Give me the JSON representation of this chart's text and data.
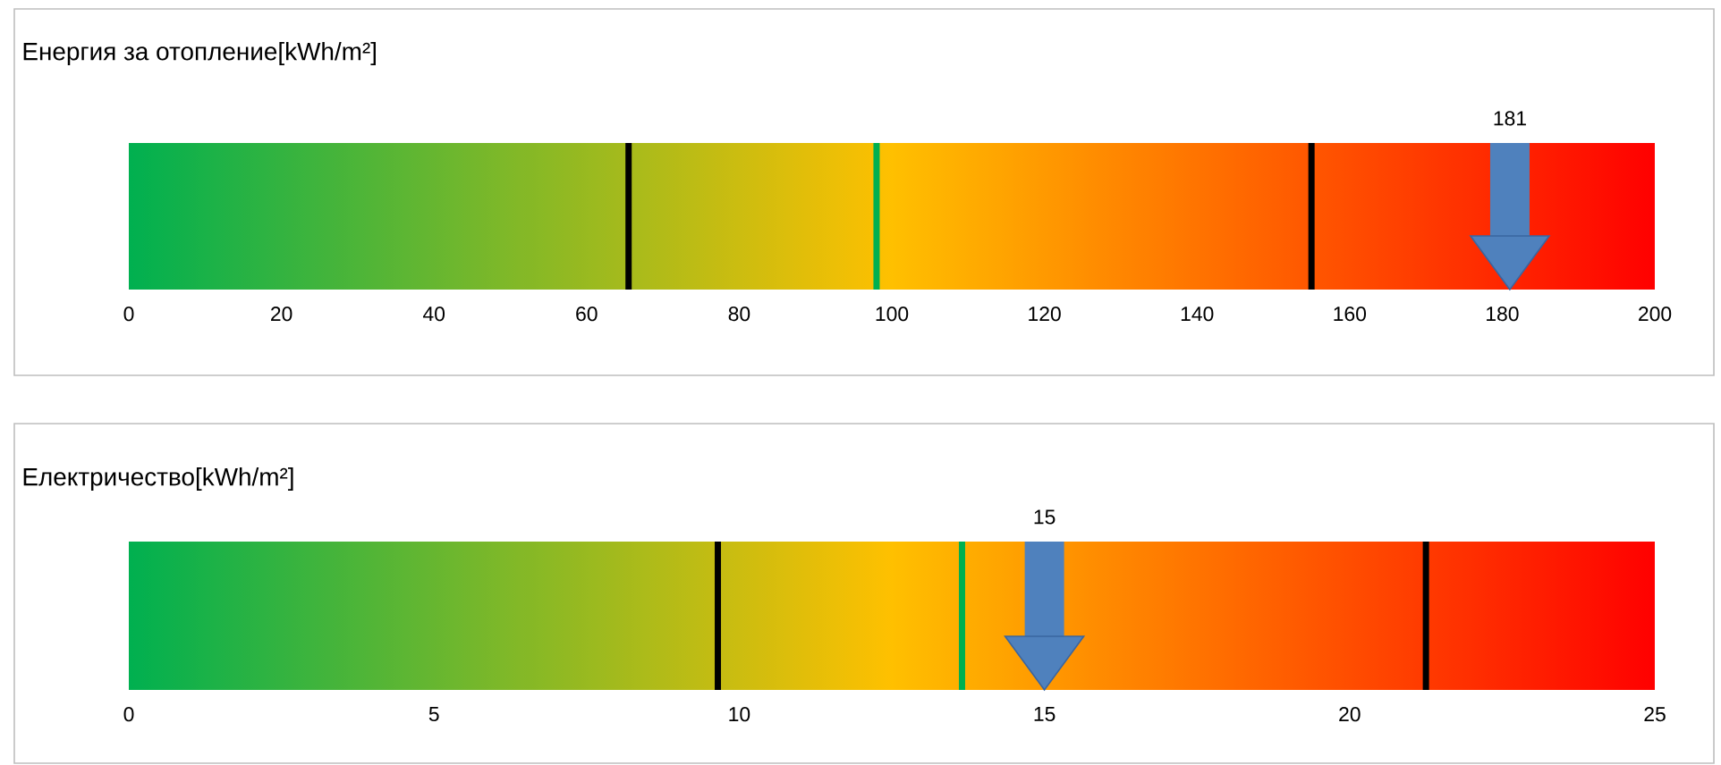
{
  "chart_data": [
    {
      "type": "scatter",
      "orientation": "horizontal",
      "title": "Енергия за отопление[kWh/m²]",
      "categories": [
        null
      ],
      "xlim": [
        0,
        200
      ],
      "xticks": [
        0,
        20,
        40,
        60,
        80,
        100,
        120,
        140,
        160,
        180,
        200
      ],
      "series": [
        {
          "values": [
            181
          ],
          "color": "#4f81bd",
          "marker": "triangle",
          "value_labels": [
            "181"
          ]
        }
      ],
      "ref_lines": [
        {
          "axis": "x",
          "value": 65.5,
          "color": "#000000"
        },
        {
          "axis": "x",
          "value": 98,
          "color": "#00b050"
        },
        {
          "axis": "x",
          "value": 155,
          "color": "#000000"
        }
      ]
    },
    {
      "type": "scatter",
      "orientation": "horizontal",
      "title": "Електричество[kWh/m²]",
      "categories": [
        null
      ],
      "xlim": [
        0,
        25
      ],
      "xticks": [
        0,
        5,
        10,
        15,
        20,
        25
      ],
      "series": [
        {
          "values": [
            15
          ],
          "color": "#4f81bd",
          "marker": "triangle",
          "value_labels": [
            "15"
          ]
        }
      ],
      "ref_lines": [
        {
          "axis": "x",
          "value": 9.65,
          "color": "#000000"
        },
        {
          "axis": "x",
          "value": 13.65,
          "color": "#00b050"
        },
        {
          "axis": "x",
          "value": 21.25,
          "color": "#000000"
        }
      ]
    }
  ]
}
